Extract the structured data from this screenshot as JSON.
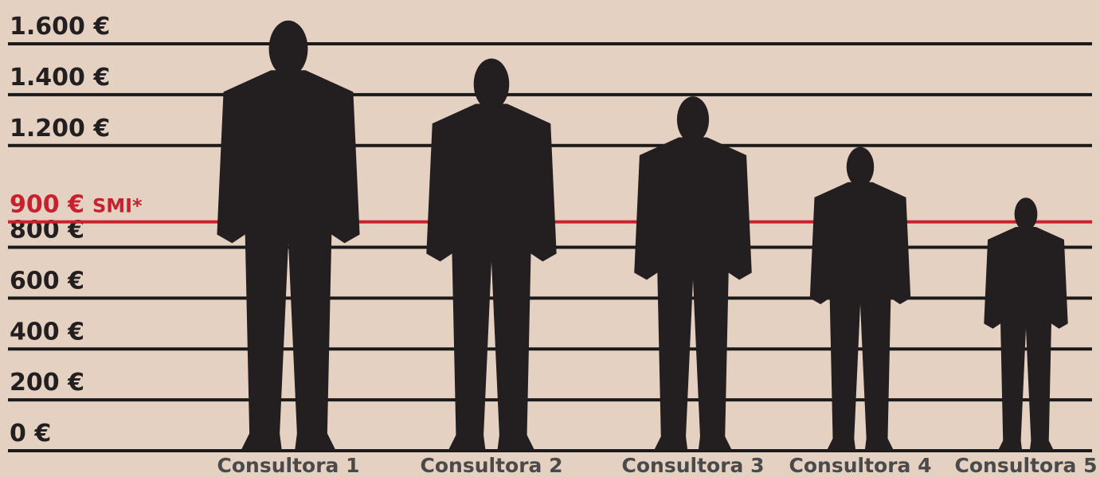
{
  "chart_data": {
    "type": "pictogram",
    "categories": [
      "Consultora 1",
      "Consultora 2",
      "Consultora 3",
      "Consultora 4",
      "Consultora 5"
    ],
    "values": [
      1700,
      1550,
      1400,
      1200,
      1000
    ],
    "color": "#231f20",
    "ylim": [
      0,
      1600
    ],
    "yticks": [
      {
        "value": 0,
        "label": "0 €"
      },
      {
        "value": 200,
        "label": "200 €"
      },
      {
        "value": 400,
        "label": "400 €"
      },
      {
        "value": 600,
        "label": "600 €"
      },
      {
        "value": 800,
        "label": "800 €"
      },
      {
        "value": 1200,
        "label": "1.200 €"
      },
      {
        "value": 1400,
        "label": "1.400 €"
      },
      {
        "value": 1600,
        "label": "1.600 €"
      }
    ],
    "reference_line": {
      "value": 900,
      "tick_label": "900 €",
      "label": "SMI*",
      "color": "#c8202f"
    },
    "grid": true
  }
}
